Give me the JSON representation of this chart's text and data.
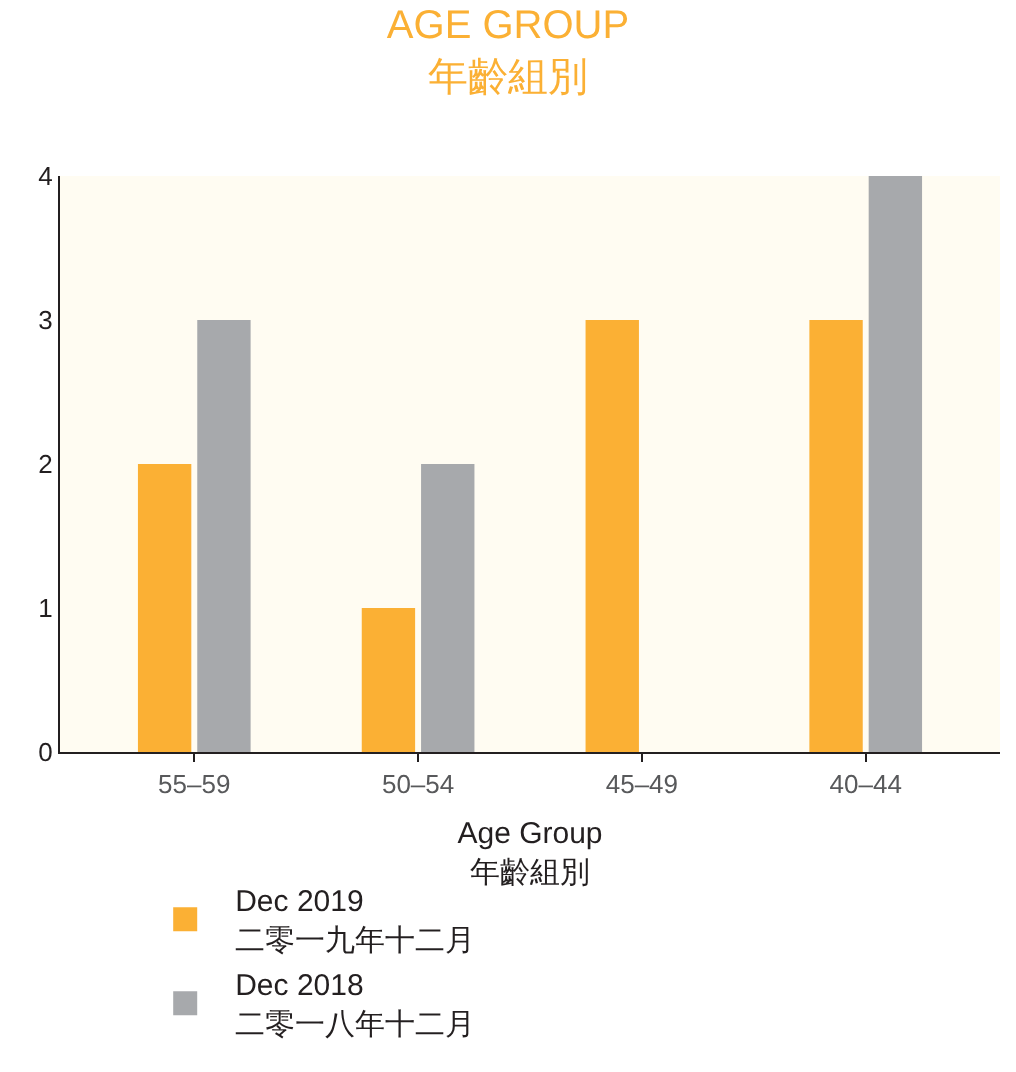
{
  "chart_data": {
    "type": "bar",
    "title": "AGE GROUP\n年齡組別",
    "xlabel": "Age Group\n年齡組別",
    "categories": [
      "55–59",
      "50–54",
      "45–49",
      "40–44"
    ],
    "series": [
      {
        "name": "Dec 2019\n二零一九年十二月",
        "color": "#fbb034",
        "values": [
          2,
          1,
          3,
          3
        ]
      },
      {
        "name": "Dec 2018\n二零一八年十二月",
        "color": "#a7a9ac",
        "values": [
          3,
          2,
          0,
          4
        ]
      }
    ],
    "ylim": [
      0,
      4
    ],
    "yticks": [
      0,
      1,
      2,
      3,
      4
    ],
    "grid": false,
    "legend": "bottom"
  }
}
